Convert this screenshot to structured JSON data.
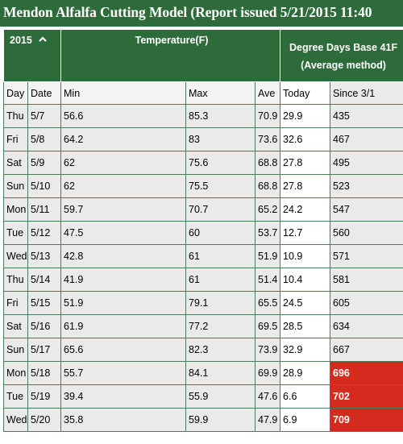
{
  "title": "Mendon Alfalfa Cutting Model (Report issued 5/21/2015 11:40",
  "header": {
    "year": "2015",
    "year_icon": "chevron-up-icon",
    "temperature": "Temperature(F)",
    "degree_days_line1": "Degree Days Base 41F",
    "degree_days_line2": "(Average method)"
  },
  "columns": {
    "day": "Day",
    "date": "Date",
    "min": "Min",
    "max": "Max",
    "ave": "Ave",
    "today": "Today",
    "since": "Since 3/1"
  },
  "alert_color": "#d42b1e",
  "rows": [
    {
      "day": "Thu",
      "date": "5/7",
      "min": "56.6",
      "max": "85.3",
      "ave": "70.9",
      "today": "29.9",
      "since": "435",
      "alert": false
    },
    {
      "day": "Fri",
      "date": "5/8",
      "min": "64.2",
      "max": "83",
      "ave": "73.6",
      "today": "32.6",
      "since": "467",
      "alert": false
    },
    {
      "day": "Sat",
      "date": "5/9",
      "min": "62",
      "max": "75.6",
      "ave": "68.8",
      "today": "27.8",
      "since": "495",
      "alert": false
    },
    {
      "day": "Sun",
      "date": "5/10",
      "min": "62",
      "max": "75.5",
      "ave": "68.8",
      "today": "27.8",
      "since": "523",
      "alert": false
    },
    {
      "day": "Mon",
      "date": "5/11",
      "min": "59.7",
      "max": "70.7",
      "ave": "65.2",
      "today": "24.2",
      "since": "547",
      "alert": false
    },
    {
      "day": "Tue",
      "date": "5/12",
      "min": "47.5",
      "max": "60",
      "ave": "53.7",
      "today": "12.7",
      "since": "560",
      "alert": false
    },
    {
      "day": "Wed",
      "date": "5/13",
      "min": "42.8",
      "max": "61",
      "ave": "51.9",
      "today": "10.9",
      "since": "571",
      "alert": false
    },
    {
      "day": "Thu",
      "date": "5/14",
      "min": "41.9",
      "max": "61",
      "ave": "51.4",
      "today": "10.4",
      "since": "581",
      "alert": false
    },
    {
      "day": "Fri",
      "date": "5/15",
      "min": "51.9",
      "max": "79.1",
      "ave": "65.5",
      "today": "24.5",
      "since": "605",
      "alert": false
    },
    {
      "day": "Sat",
      "date": "5/16",
      "min": "61.9",
      "max": "77.2",
      "ave": "69.5",
      "today": "28.5",
      "since": "634",
      "alert": false
    },
    {
      "day": "Sun",
      "date": "5/17",
      "min": "65.6",
      "max": "82.3",
      "ave": "73.9",
      "today": "32.9",
      "since": "667",
      "alert": false
    },
    {
      "day": "Mon",
      "date": "5/18",
      "min": "55.7",
      "max": "84.1",
      "ave": "69.9",
      "today": "28.9",
      "since": "696",
      "alert": true
    },
    {
      "day": "Tue",
      "date": "5/19",
      "min": "39.4",
      "max": "55.9",
      "ave": "47.6",
      "today": "6.6",
      "since": "702",
      "alert": true
    },
    {
      "day": "Wed",
      "date": "5/20",
      "min": "35.8",
      "max": "59.9",
      "ave": "47.9",
      "today": "6.9",
      "since": "709",
      "alert": true
    }
  ]
}
